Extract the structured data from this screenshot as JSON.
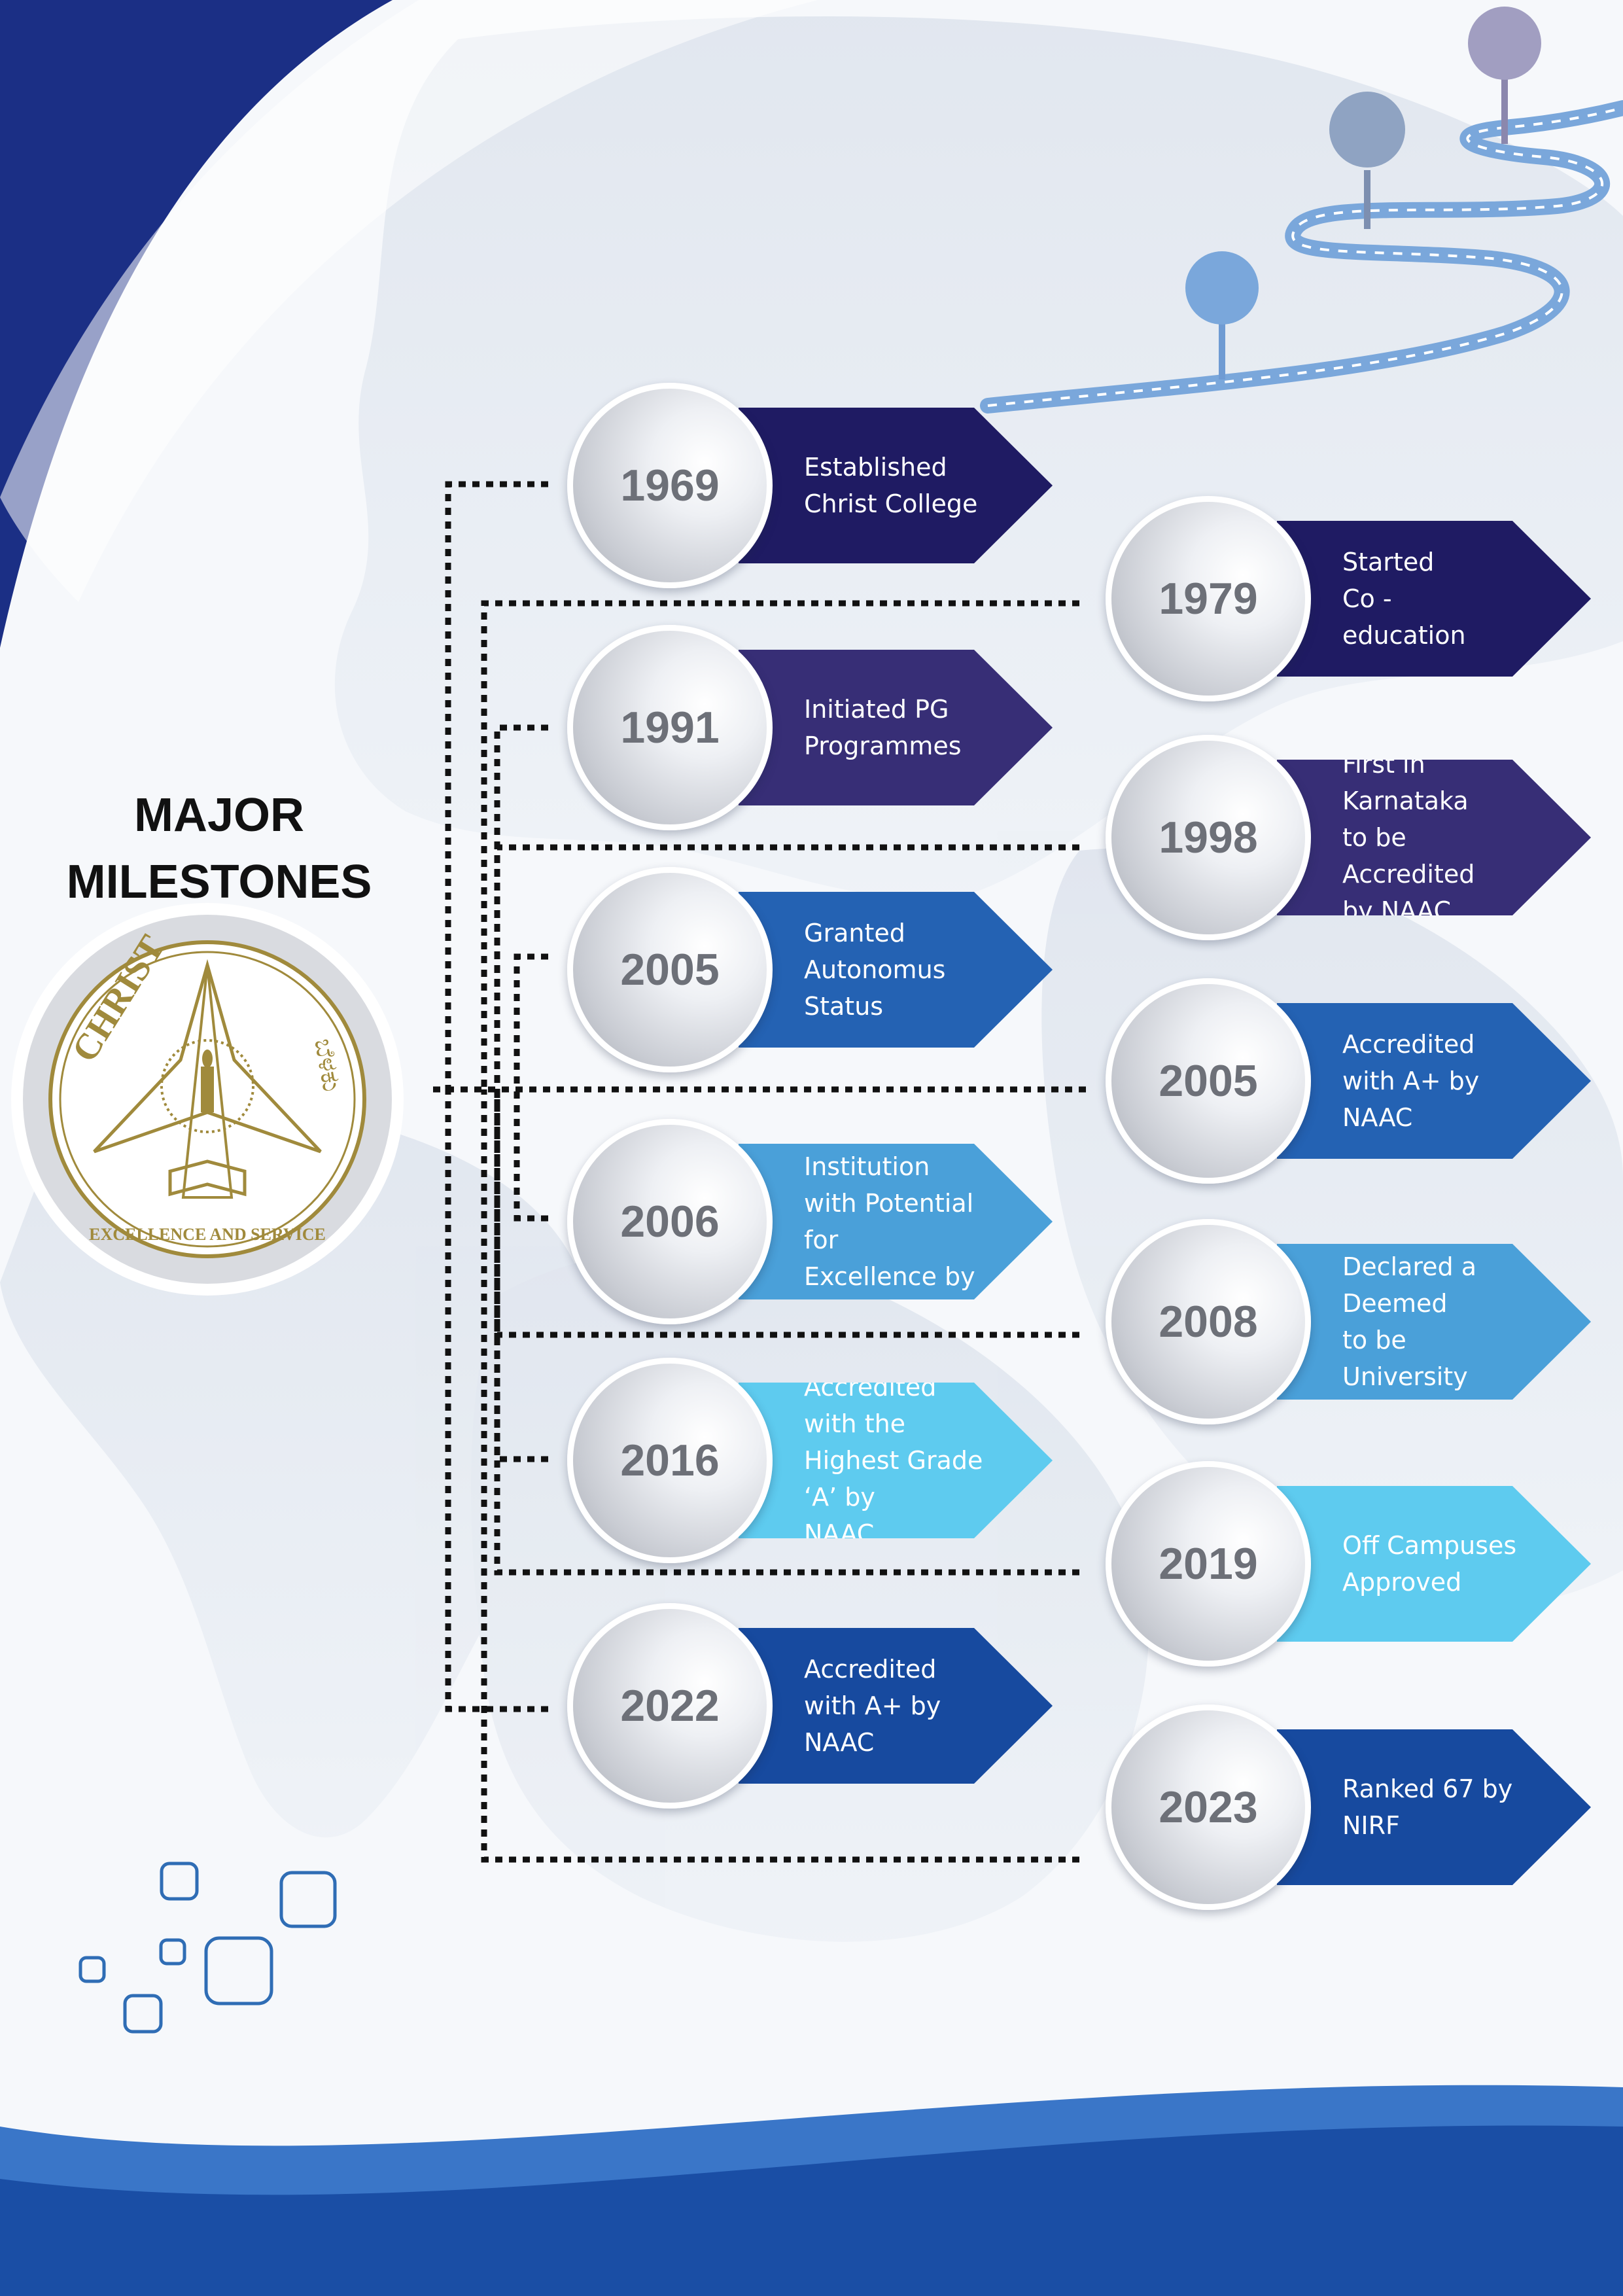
{
  "heading": {
    "line1": "MAJOR",
    "line2": "MILESTONES"
  },
  "logo": {
    "text": "CHRIST",
    "motto": "EXCELLENCE AND SERVICE",
    "script_text": "ಬೆಳಕು",
    "color": "#a08a3c"
  },
  "milestones": [
    {
      "year": "1969",
      "text": "Established\nChrist College",
      "color": "#1f1b63"
    },
    {
      "year": "1979",
      "text": "Started\nCo - education",
      "color": "#1f1b63"
    },
    {
      "year": "1991",
      "text": "Initiated PG\nProgrammes",
      "color": "#372e76"
    },
    {
      "year": "1998",
      "text": "First in Karnataka\nto be Accredited\nby NAAC",
      "color": "#372e76"
    },
    {
      "year": "2005",
      "text": "Granted\nAutonomus Status",
      "color": "#2462b3"
    },
    {
      "year": "2005",
      "text": "Accredited\nwith A+ by NAAC",
      "color": "#2462b3"
    },
    {
      "year": "2006",
      "text": "Declared Institution\nwith Potential for\nExcellence by UGC",
      "color": "#4aa0d9"
    },
    {
      "year": "2008",
      "text": "Declared a Deemed\nto be University",
      "color": "#4aa0d9"
    },
    {
      "year": "2016",
      "text": "Accredited with the\nHighest Grade ‘A’ by\nNAAC",
      "color": "#5ecbef"
    },
    {
      "year": "2019",
      "text": "Off Campuses\nApproved",
      "color": "#5ecbef"
    },
    {
      "year": "2022",
      "text": "Accredited\nwith  A+ by NAAC",
      "color": "#174a9f"
    },
    {
      "year": "2023",
      "text": "Ranked 67 by NIRF",
      "color": "#174a9f"
    }
  ],
  "colors": {
    "navy": "#1b2f85",
    "royal": "#1f56b4",
    "road": "#7aa7db",
    "line": "#111111"
  }
}
